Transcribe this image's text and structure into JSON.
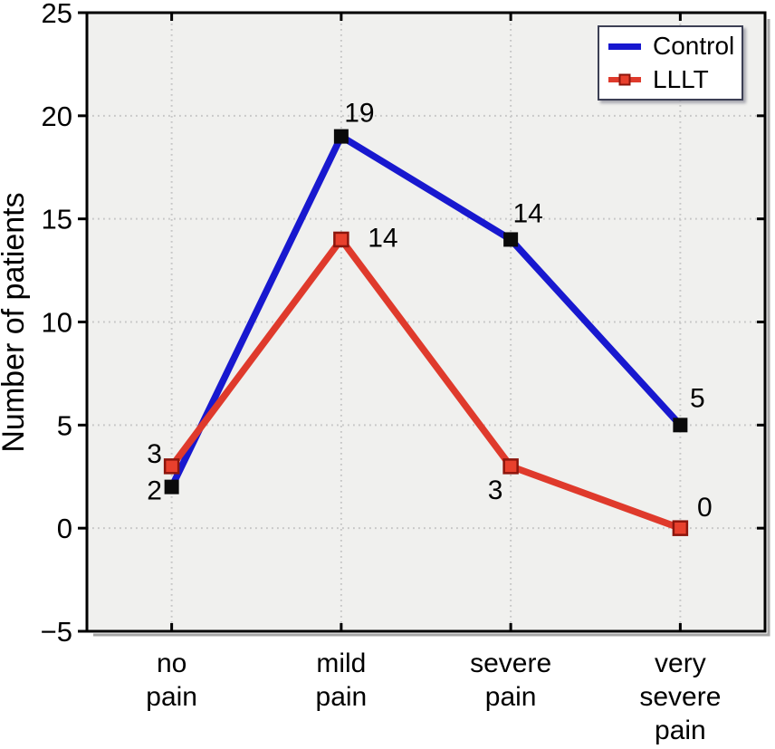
{
  "chart_data": {
    "type": "line",
    "title": "",
    "xlabel": "",
    "ylabel": "Number of patients",
    "ylim": [
      -5,
      25
    ],
    "yticks": {
      "values": [
        25,
        20,
        15,
        10,
        5,
        0,
        -5
      ],
      "labels": [
        "25",
        "20",
        "15",
        "10",
        "5",
        "0",
        "−5"
      ]
    },
    "grid": "dotted",
    "grid_values": [
      20,
      15,
      10,
      5,
      0
    ],
    "grid_color": "#c6c6c6",
    "plot_bg": "#f0f0ee",
    "frame_color": "#000000",
    "categories": [
      {
        "label": "no pain",
        "lines": [
          "no",
          "pain"
        ]
      },
      {
        "label": "mild pain",
        "lines": [
          "mild",
          "pain"
        ]
      },
      {
        "label": "severe pain",
        "lines": [
          "severe",
          "pain"
        ]
      },
      {
        "label": "very severe pain",
        "lines": [
          "very",
          "severe",
          "pain"
        ]
      }
    ],
    "series": [
      {
        "name": "Control",
        "color": "#1818cf",
        "line_width": 7.5,
        "marker": {
          "shape": "square",
          "fill": "#0a0a0a",
          "stroke": "#0a0a0a"
        },
        "values": [
          2,
          19,
          14,
          5
        ],
        "label_offsets": [
          {
            "dx": -19,
            "dy": 14
          },
          {
            "dx": 20,
            "dy": -16
          },
          {
            "dx": 19,
            "dy": -19
          },
          {
            "dx": 19,
            "dy": -20
          }
        ]
      },
      {
        "name": "LLLT",
        "color": "#df3a2c",
        "line_width": 7.5,
        "marker": {
          "shape": "square",
          "fill": "#e8402d",
          "stroke": "#8c150c"
        },
        "values": [
          3,
          14,
          3,
          0
        ],
        "label_offsets": [
          {
            "dx": -19,
            "dy": -4
          },
          {
            "dx": 46,
            "dy": 8
          },
          {
            "dx": -17,
            "dy": 36
          },
          {
            "dx": 27,
            "dy": -13
          }
        ]
      }
    ],
    "legend": {
      "position": "top-right",
      "items": [
        {
          "label": "Control"
        },
        {
          "label": "LLLT"
        }
      ]
    }
  }
}
